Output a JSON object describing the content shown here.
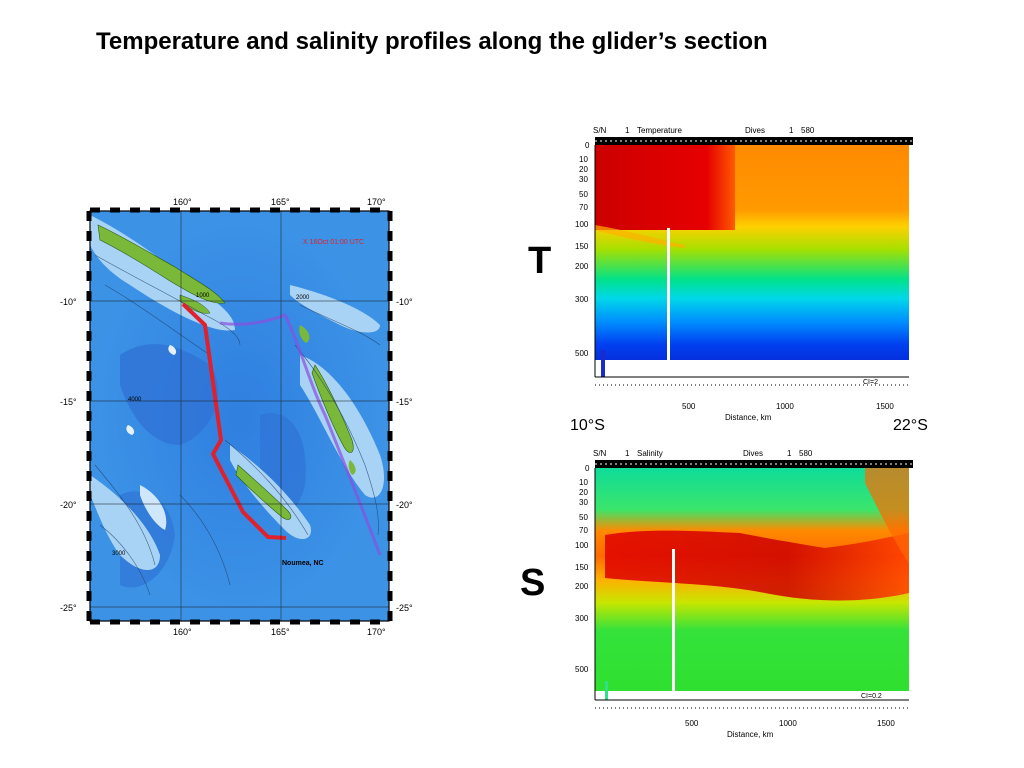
{
  "slide": {
    "title": "Temperature and salinity profiles along the glider’s section",
    "label_T": "T",
    "label_S": "S",
    "lat_start": "10°S",
    "lat_end": "22°S"
  },
  "map": {
    "lon_labels": [
      "160°",
      "165°",
      "170°"
    ],
    "lat_labels": [
      "-10°",
      "-15°",
      "-20°",
      "-25°"
    ],
    "timestamp": "X 16Oct 01:00 UTC",
    "place_label": "Noumea, NC",
    "contour_labels": [
      "1000",
      "2000",
      "3000",
      "4000"
    ],
    "track_color": "#e0202a",
    "ocean_color": "#3c93e6",
    "land_color": "#7ab83a"
  },
  "temperature_panel": {
    "header": {
      "sn": "S/N",
      "sn_val": "1",
      "var": "Temperature",
      "dives": "Dives",
      "dives_a": "1",
      "dives_b": "580"
    },
    "depth_ticks": [
      "0",
      "10",
      "20",
      "30",
      "50",
      "70",
      "100",
      "150",
      "200",
      "300",
      "500"
    ],
    "distance_ticks": [
      "500",
      "1000",
      "1500"
    ],
    "xlabel": "Distance,  km",
    "ci": "CI=2"
  },
  "salinity_panel": {
    "header": {
      "sn": "S/N",
      "sn_val": "1",
      "var": "Salinity",
      "dives": "Dives",
      "dives_a": "1",
      "dives_b": "580"
    },
    "depth_ticks": [
      "0",
      "10",
      "20",
      "30",
      "50",
      "70",
      "100",
      "150",
      "200",
      "300",
      "500"
    ],
    "distance_ticks": [
      "500",
      "1000",
      "1500"
    ],
    "xlabel": "Distance,  km",
    "ci": "CI=0.2"
  }
}
